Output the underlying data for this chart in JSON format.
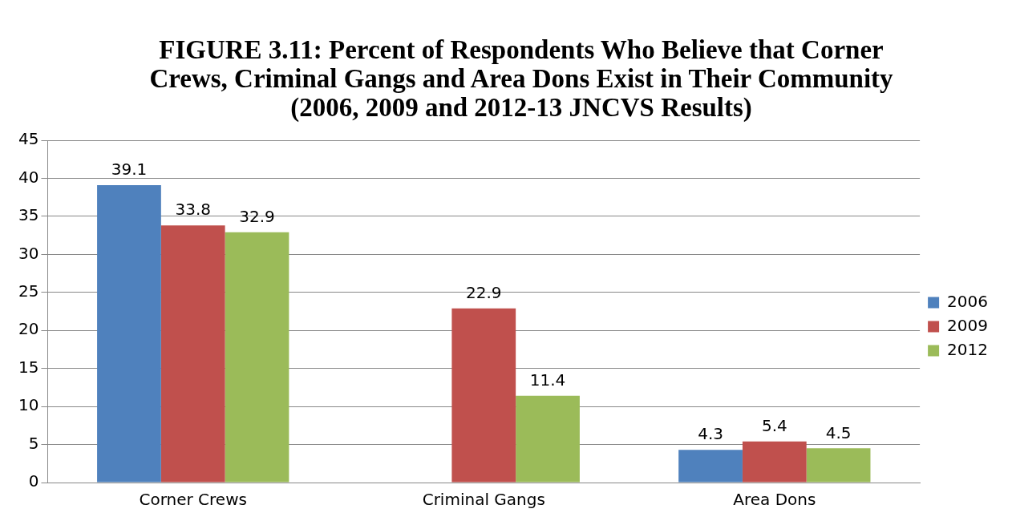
{
  "chart_data": {
    "type": "bar",
    "title": "FIGURE 3.11: Percent of Respondents Who Believe that Corner Crews, Criminal Gangs and Area Dons Exist in Their Community (2006, 2009 and 2012-13 JNCVS Results)",
    "categories": [
      "Corner Crews",
      "Criminal Gangs",
      "Area Dons"
    ],
    "series": [
      {
        "name": "2006",
        "color": "#4f81bd",
        "values": [
          39.1,
          null,
          4.3
        ]
      },
      {
        "name": "2009",
        "color": "#c0504d",
        "values": [
          33.8,
          22.9,
          5.4
        ]
      },
      {
        "name": "2012",
        "color": "#9bbb59",
        "values": [
          32.9,
          11.4,
          4.5
        ]
      }
    ],
    "ylim": [
      0,
      45
    ],
    "yticks": [
      0,
      5,
      10,
      15,
      20,
      25,
      30,
      35,
      40,
      45
    ],
    "grid": "y",
    "legend": "right",
    "data_labels": true
  }
}
